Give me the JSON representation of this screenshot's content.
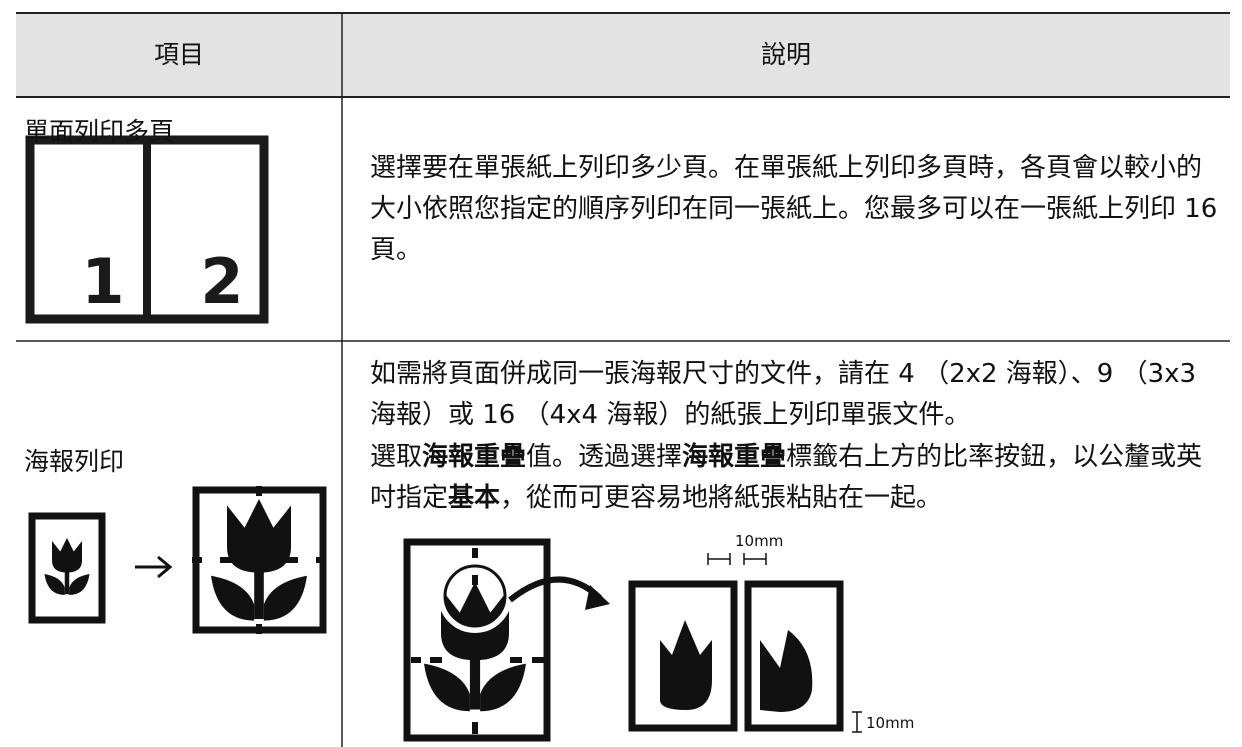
{
  "table": {
    "headers": [
      "項目",
      "說明"
    ],
    "rows": [
      {
        "item": "單面列印多頁",
        "figure_labels": [
          "1",
          "2"
        ],
        "description": [
          [
            {
              "text": "選擇要在單張紙上列印多少頁。在單張紙上列印多頁時，各頁會以較小的大小依照您指定的順序列印在同一張紙上。您最多可以在一張紙上列印 16 頁。"
            }
          ]
        ]
      },
      {
        "item": "海報列印",
        "figure_labels": [
          "10mm",
          "10mm"
        ],
        "description": [
          [
            {
              "text": "如需將頁面併成同一張海報尺寸的文件，請在 4 （2x2 海報）、9 （3x3 海報）或 16 （4x4 海報）的紙張上列印單張文件。"
            }
          ],
          [
            {
              "text": "選取"
            },
            {
              "text": "海報重疊",
              "bold": true
            },
            {
              "text": "值。透過選擇"
            },
            {
              "text": "海報重疊",
              "bold": true
            },
            {
              "text": "標籤右上方的比率按鈕，以公釐或英吋指定"
            },
            {
              "text": "基本",
              "bold": true
            },
            {
              "text": "，從而可更容易地將紙張粘貼在一起。"
            }
          ]
        ]
      }
    ]
  }
}
